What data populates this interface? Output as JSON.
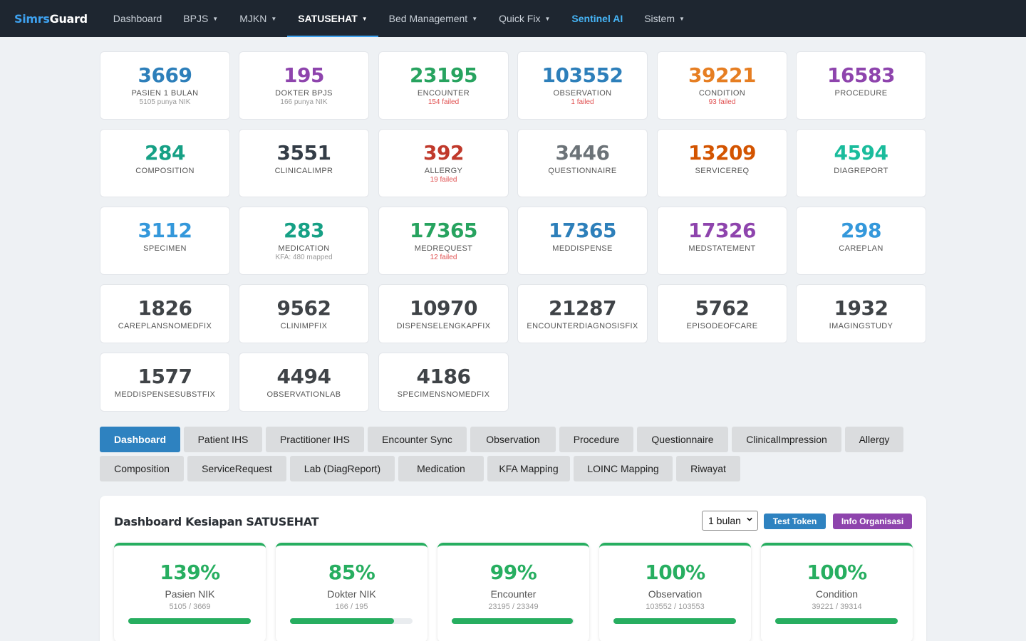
{
  "nav": {
    "brand_a": "Simrs",
    "brand_b": "Guard",
    "items": [
      {
        "label": "Dashboard",
        "caret": false
      },
      {
        "label": "BPJS",
        "caret": true
      },
      {
        "label": "MJKN",
        "caret": true
      },
      {
        "label": "SATUSEHAT",
        "caret": true,
        "active": true
      },
      {
        "label": "Bed Management",
        "caret": true
      },
      {
        "label": "Quick Fix",
        "caret": true
      },
      {
        "label": "Sentinel AI",
        "caret": false
      },
      {
        "label": "Sistem",
        "caret": true
      }
    ]
  },
  "stats": [
    {
      "value": "3669",
      "label": "PASIEN 1 BULAN",
      "sub": "5105 punya NIK",
      "color": "#2d7fba"
    },
    {
      "value": "195",
      "label": "DOKTER BPJS",
      "sub": "166 punya NIK",
      "color": "#8e44ad"
    },
    {
      "value": "23195",
      "label": "ENCOUNTER",
      "sub": "154 failed",
      "color": "#27a35f"
    },
    {
      "value": "103552",
      "label": "OBSERVATION",
      "sub": "1 failed",
      "color": "#2d7fba"
    },
    {
      "value": "39221",
      "label": "CONDITION",
      "sub": "93 failed",
      "color": "#e67e22"
    },
    {
      "value": "16583",
      "label": "PROCEDURE",
      "sub": "",
      "color": "#8e44ad"
    },
    {
      "value": "284",
      "label": "COMPOSITION",
      "sub": "",
      "color": "#16a085"
    },
    {
      "value": "3551",
      "label": "CLINICALIMPR",
      "sub": "",
      "color": "#333c46"
    },
    {
      "value": "392",
      "label": "ALLERGY",
      "sub": "19 failed",
      "color": "#c0392b"
    },
    {
      "value": "3446",
      "label": "QUESTIONNAIRE",
      "sub": "",
      "color": "#6c7378"
    },
    {
      "value": "13209",
      "label": "SERVICEREQ",
      "sub": "",
      "color": "#d35400"
    },
    {
      "value": "4594",
      "label": "DIAGREPORT",
      "sub": "",
      "color": "#1abc9c"
    },
    {
      "value": "3112",
      "label": "SPECIMEN",
      "sub": "",
      "color": "#3498db"
    },
    {
      "value": "283",
      "label": "MEDICATION",
      "sub": "KFA: 480 mapped",
      "color": "#16a085"
    },
    {
      "value": "17365",
      "label": "MEDREQUEST",
      "sub": "12 failed",
      "color": "#27a35f"
    },
    {
      "value": "17365",
      "label": "MEDDISPENSE",
      "sub": "",
      "color": "#2d7fba"
    },
    {
      "value": "17326",
      "label": "MEDSTATEMENT",
      "sub": "",
      "color": "#8e44ad"
    },
    {
      "value": "298",
      "label": "CAREPLAN",
      "sub": "",
      "color": "#3498db"
    },
    {
      "value": "1826",
      "label": "CAREPLANSNOMEDFIX",
      "sub": "",
      "color": "#3f4347"
    },
    {
      "value": "9562",
      "label": "CLINIMPFIX",
      "sub": "",
      "color": "#3f4347"
    },
    {
      "value": "10970",
      "label": "DISPENSELENGKAPFIX",
      "sub": "",
      "color": "#3f4347"
    },
    {
      "value": "21287",
      "label": "ENCOUNTERDIAGNOSISFIX",
      "sub": "",
      "color": "#3f4347"
    },
    {
      "value": "5762",
      "label": "EPISODEOFCARE",
      "sub": "",
      "color": "#3f4347"
    },
    {
      "value": "1932",
      "label": "IMAGINGSTUDY",
      "sub": "",
      "color": "#3f4347"
    },
    {
      "value": "1577",
      "label": "MEDDISPENSESUBSTFIX",
      "sub": "",
      "color": "#3f4347"
    },
    {
      "value": "4494",
      "label": "OBSERVATIONLAB",
      "sub": "",
      "color": "#3f4347"
    },
    {
      "value": "4186",
      "label": "SPECIMENSNOMEDFIX",
      "sub": "",
      "color": "#3f4347"
    }
  ],
  "tabs_row1": [
    "Dashboard",
    "Patient IHS",
    "Practitioner IHS",
    "Encounter Sync",
    "Observation",
    "Procedure",
    "Questionnaire",
    "ClinicalImpression",
    "Allergy"
  ],
  "tabs_row2": [
    "Composition",
    "ServiceRequest",
    "Lab (DiagReport)",
    "Medication",
    "KFA Mapping",
    "LOINC Mapping",
    "Riwayat"
  ],
  "panel": {
    "title": "Dashboard Kesiapan SATUSEHAT",
    "period": "1 bulan",
    "test_token": "Test Token",
    "info_org": "Info Organisasi",
    "readiness": [
      {
        "pct": "139%",
        "label": "Pasien NIK",
        "count": "5105 / 3669",
        "fill": 1.0
      },
      {
        "pct": "85%",
        "label": "Dokter NIK",
        "count": "166 / 195",
        "fill": 0.85
      },
      {
        "pct": "99%",
        "label": "Encounter",
        "count": "23195 / 23349",
        "fill": 0.99
      },
      {
        "pct": "100%",
        "label": "Observation",
        "count": "103552 / 103553",
        "fill": 1.0
      },
      {
        "pct": "100%",
        "label": "Condition",
        "count": "39221 / 39314",
        "fill": 1.0
      }
    ]
  }
}
